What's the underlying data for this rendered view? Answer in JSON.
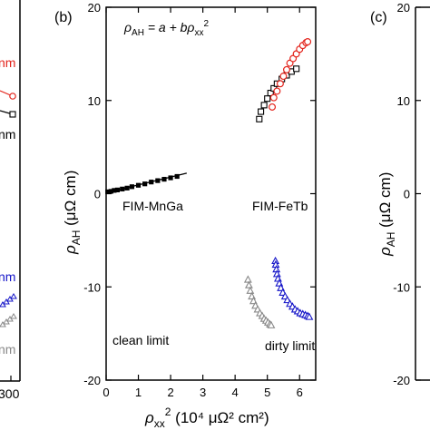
{
  "chart_data": [
    {
      "panel": "left (partially visible)",
      "type": "line",
      "x_tick_labels": [
        "300"
      ],
      "label_fragments": [
        "nm",
        "nm",
        "nm",
        "nm"
      ],
      "colors": {
        "red": "#e3231b",
        "black": "#000000",
        "blue": "#1414c8",
        "gray": "#888888"
      }
    },
    {
      "panel_label": "(b)",
      "type": "scatter",
      "title": "",
      "formula": {
        "lhs": "ρ",
        "lhs_sub": "AH",
        "rhs_pre": " = a + bρ",
        "rhs_sub": "xx",
        "rhs_sup": "2"
      },
      "xlabel": {
        "main": "ρ",
        "sub": "xx",
        "sup": "2",
        "unit": " (10⁴ μΩ² cm²)"
      },
      "ylabel": {
        "main": "ρ",
        "sub": "AH",
        "unit": " (μΩ cm)"
      },
      "xlim": [
        0,
        6.5
      ],
      "ylim": [
        -20,
        20
      ],
      "x_ticks": [
        0,
        1,
        2,
        3,
        4,
        5,
        6
      ],
      "x_tick_labels": [
        "0",
        "1",
        "2",
        "3",
        "4",
        "5",
        "6"
      ],
      "y_ticks": [
        -20,
        -10,
        0,
        10,
        20
      ],
      "y_tick_labels": [
        "-20",
        "-10",
        "0",
        "10",
        "20"
      ],
      "annotations": {
        "mnga": "FIM-MnGa",
        "fetb": "FIM-FeTb",
        "clean": "clean limit",
        "dirty": "dirty limit"
      },
      "fit_line": {
        "x": [
          0,
          2.5
        ],
        "y": [
          0.1,
          2.2
        ],
        "color": "#000000"
      },
      "series": [
        {
          "marker": "filled-square",
          "color": "#000000",
          "x": [
            0.05,
            0.15,
            0.25,
            0.35,
            0.5,
            0.65,
            0.8,
            1.0,
            1.2,
            1.4,
            1.6,
            1.8,
            2.0,
            2.2
          ],
          "y": [
            0.2,
            0.25,
            0.35,
            0.4,
            0.5,
            0.6,
            0.75,
            0.9,
            1.05,
            1.25,
            1.4,
            1.55,
            1.7,
            1.85
          ]
        },
        {
          "marker": "open-square",
          "color": "#000000",
          "x": [
            4.75,
            4.8,
            4.9,
            5.0,
            5.1,
            5.2,
            5.3,
            5.45,
            5.6,
            5.75,
            5.9
          ],
          "y": [
            8.0,
            8.8,
            9.5,
            10.2,
            10.8,
            11.3,
            11.8,
            12.3,
            12.7,
            13.1,
            13.4
          ]
        },
        {
          "marker": "open-circle",
          "color": "#e3231b",
          "x": [
            5.15,
            5.2,
            5.3,
            5.4,
            5.5,
            5.6,
            5.7,
            5.8,
            5.9,
            6.0,
            6.1,
            6.2,
            6.25
          ],
          "y": [
            9.3,
            10.3,
            11.0,
            11.8,
            12.6,
            13.3,
            14.0,
            14.5,
            15.0,
            15.5,
            15.9,
            16.2,
            16.3
          ]
        },
        {
          "marker": "open-triangle",
          "color": "#1414c8",
          "x": [
            5.25,
            5.26,
            5.28,
            5.3,
            5.33,
            5.37,
            5.42,
            5.48,
            5.55,
            5.62,
            5.7,
            5.78,
            5.86,
            5.94,
            6.02,
            6.1,
            6.18,
            6.25,
            6.3
          ],
          "y": [
            -7.2,
            -7.6,
            -8.1,
            -8.6,
            -9.1,
            -9.6,
            -10.1,
            -10.6,
            -11.0,
            -11.4,
            -11.8,
            -12.1,
            -12.4,
            -12.6,
            -12.8,
            -12.9,
            -13.0,
            -13.1,
            -13.2
          ]
        },
        {
          "marker": "open-triangle",
          "color": "#888888",
          "x": [
            4.4,
            4.43,
            4.47,
            4.52,
            4.57,
            4.63,
            4.7,
            4.77,
            4.84,
            4.9,
            4.96,
            5.02,
            5.08,
            5.12
          ],
          "y": [
            -9.2,
            -9.8,
            -10.4,
            -11.0,
            -11.5,
            -12.0,
            -12.4,
            -12.8,
            -13.1,
            -13.4,
            -13.6,
            -13.8,
            -14.0,
            -14.1
          ]
        }
      ]
    },
    {
      "panel_label": "(c)",
      "type": "scatter",
      "ylabel": {
        "main": "ρ",
        "sub": "AH",
        "unit": " (μΩ cm)"
      },
      "y_tick_labels": [
        "20",
        "10",
        "0",
        "-10",
        "-20"
      ]
    }
  ]
}
